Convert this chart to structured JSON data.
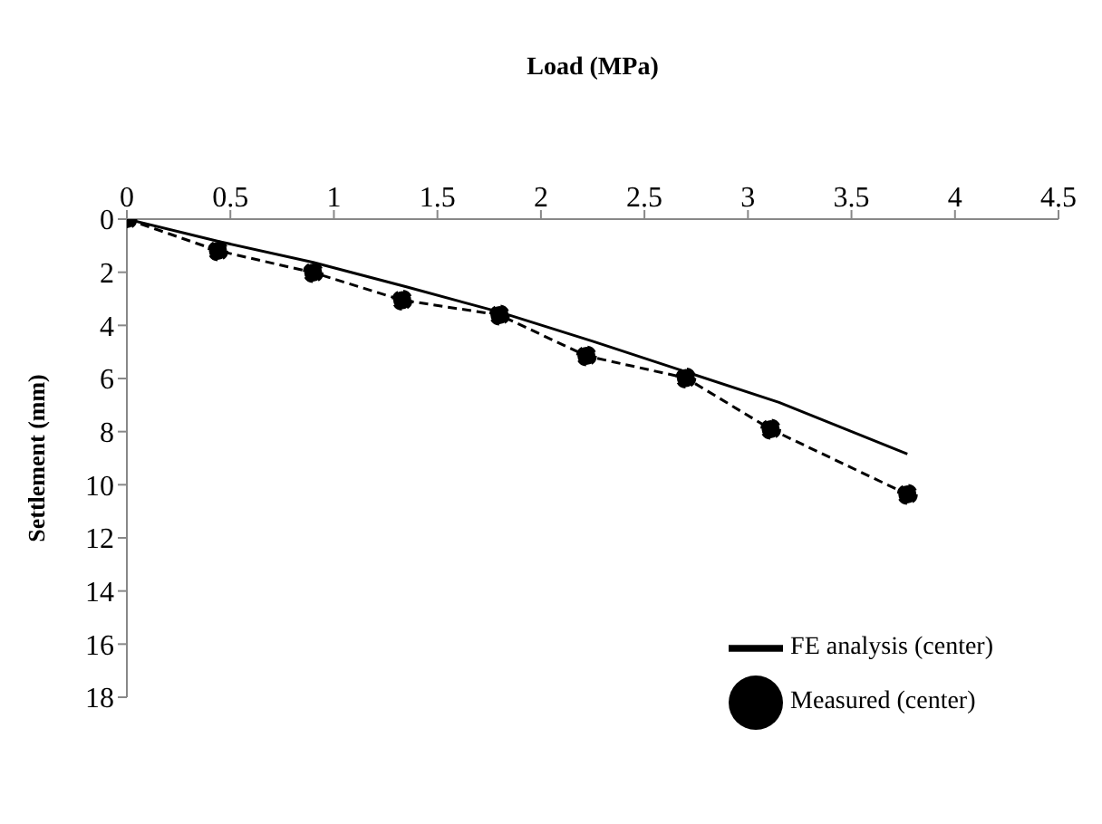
{
  "chart_data": {
    "type": "line",
    "xlabel": "Load (MPa)",
    "ylabel": "Settlement (mm)",
    "xlim": [
      0,
      4.5
    ],
    "xticks": [
      0,
      0.5,
      1,
      1.5,
      2,
      2.5,
      3,
      3.5,
      4,
      4.5
    ],
    "ylim": [
      18,
      0
    ],
    "yticks": [
      0,
      2,
      4,
      6,
      8,
      10,
      12,
      14,
      16,
      18
    ],
    "grid": false,
    "legend": "bottom right",
    "series": [
      {
        "name": "FE analysis (center)",
        "color": "#000000",
        "marker": "none",
        "line_style": "solid",
        "x": [
          0,
          0.45,
          0.9,
          1.35,
          1.8,
          2.25,
          2.7,
          3.15,
          3.77
        ],
        "values": [
          0,
          0.85,
          1.63,
          2.55,
          3.5,
          4.6,
          5.75,
          6.9,
          8.84
        ]
      },
      {
        "name": "Measured (center)",
        "color": "#000000",
        "marker": "circle",
        "line_style": "dashed",
        "x": [
          0,
          0.44,
          0.9,
          1.33,
          1.8,
          2.22,
          2.7,
          3.11,
          3.77
        ],
        "values": [
          0,
          1.19,
          2.01,
          3.05,
          3.61,
          5.15,
          5.98,
          7.91,
          10.36
        ]
      }
    ]
  }
}
